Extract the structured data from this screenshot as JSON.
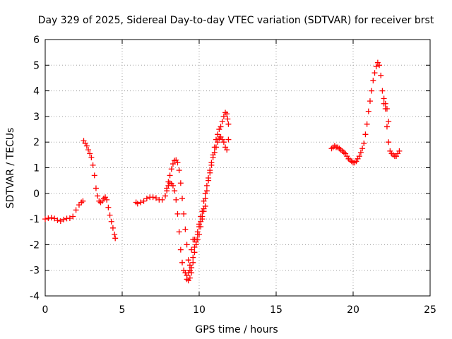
{
  "chart_data": {
    "type": "scatter",
    "title": "Day 329 of 2025, Sidereal Day-to-day VTEC variation (SDTVAR) for receiver brst",
    "xlabel": "GPS time / hours",
    "ylabel": "SDTVAR / TECUs",
    "xlim": [
      0,
      25
    ],
    "ylim": [
      -4,
      6
    ],
    "xticks": [
      0,
      5,
      10,
      15,
      20,
      25
    ],
    "yticks": [
      -4,
      -3,
      -2,
      -1,
      0,
      1,
      2,
      3,
      4,
      5,
      6
    ],
    "grid": true,
    "marker": "+",
    "series_color": "#ff0000",
    "series": [
      {
        "points": [
          [
            0.0,
            -1.0
          ],
          [
            0.2,
            -0.97
          ],
          [
            0.4,
            -0.95
          ],
          [
            0.6,
            -0.98
          ],
          [
            0.8,
            -1.05
          ],
          [
            1.0,
            -1.08
          ],
          [
            1.2,
            -1.02
          ],
          [
            1.4,
            -0.98
          ],
          [
            1.6,
            -0.97
          ],
          [
            1.8,
            -0.9
          ],
          [
            2.0,
            -0.65
          ],
          [
            2.2,
            -0.45
          ],
          [
            2.35,
            -0.35
          ],
          [
            2.45,
            -0.3
          ],
          [
            2.5,
            2.05
          ],
          [
            2.6,
            1.95
          ],
          [
            2.7,
            1.85
          ],
          [
            2.8,
            1.7
          ],
          [
            2.9,
            1.55
          ],
          [
            3.0,
            1.4
          ],
          [
            3.1,
            1.1
          ],
          [
            3.2,
            0.7
          ],
          [
            3.3,
            0.2
          ],
          [
            3.4,
            -0.1
          ],
          [
            3.5,
            -0.3
          ],
          [
            3.6,
            -0.35
          ],
          [
            3.7,
            -0.3
          ],
          [
            3.8,
            -0.2
          ],
          [
            3.9,
            -0.15
          ],
          [
            4.0,
            -0.25
          ],
          [
            4.1,
            -0.55
          ],
          [
            4.2,
            -0.85
          ],
          [
            4.3,
            -1.1
          ],
          [
            4.4,
            -1.35
          ],
          [
            4.5,
            -1.6
          ],
          [
            4.55,
            -1.75
          ]
        ]
      },
      {
        "points": [
          [
            5.9,
            -0.35
          ],
          [
            6.0,
            -0.4
          ],
          [
            6.2,
            -0.35
          ],
          [
            6.4,
            -0.3
          ],
          [
            6.6,
            -0.2
          ],
          [
            6.8,
            -0.15
          ],
          [
            7.0,
            -0.15
          ],
          [
            7.2,
            -0.18
          ],
          [
            7.4,
            -0.25
          ],
          [
            7.6,
            -0.25
          ],
          [
            7.8,
            -0.1
          ],
          [
            7.9,
            0.1
          ],
          [
            8.0,
            0.3
          ],
          [
            8.1,
            0.4
          ],
          [
            8.2,
            0.38
          ],
          [
            8.3,
            0.3
          ],
          [
            8.4,
            0.1
          ],
          [
            8.5,
            -0.25
          ],
          [
            8.6,
            -0.8
          ],
          [
            8.7,
            -1.5
          ],
          [
            8.8,
            -2.2
          ],
          [
            8.9,
            -2.7
          ],
          [
            9.0,
            -3.0
          ],
          [
            9.1,
            -3.1
          ],
          [
            9.2,
            -3.2
          ],
          [
            9.3,
            -3.1
          ],
          [
            9.4,
            -2.8
          ],
          [
            9.5,
            -2.2
          ],
          [
            9.6,
            -1.8
          ],
          [
            9.7,
            -1.8
          ],
          [
            9.8,
            -1.9
          ],
          [
            9.9,
            -1.6
          ],
          [
            10.0,
            -1.3
          ],
          [
            10.1,
            -1.1
          ],
          [
            10.2,
            -0.9
          ],
          [
            10.3,
            -0.7
          ],
          [
            10.4,
            -0.5
          ],
          [
            7.9,
            0.2
          ],
          [
            8.0,
            0.45
          ],
          [
            8.1,
            0.7
          ],
          [
            8.2,
            0.95
          ],
          [
            8.3,
            1.15
          ],
          [
            8.4,
            1.28
          ],
          [
            8.5,
            1.3
          ],
          [
            8.6,
            1.2
          ],
          [
            8.7,
            0.9
          ],
          [
            8.8,
            0.4
          ],
          [
            8.9,
            -0.2
          ],
          [
            9.0,
            -0.8
          ],
          [
            9.1,
            -1.4
          ],
          [
            9.2,
            -2.0
          ],
          [
            9.3,
            -2.6
          ],
          [
            9.4,
            -3.0
          ],
          [
            9.5,
            -2.9
          ],
          [
            9.6,
            -2.5
          ],
          [
            9.7,
            -2.1
          ],
          [
            9.8,
            -1.8
          ],
          [
            9.9,
            -1.5
          ],
          [
            10.0,
            -1.2
          ],
          [
            10.1,
            -0.9
          ],
          [
            10.2,
            -0.7
          ],
          [
            10.3,
            -0.3
          ],
          [
            10.4,
            0.0
          ],
          [
            10.5,
            0.3
          ],
          [
            10.6,
            0.6
          ],
          [
            10.7,
            0.9
          ],
          [
            10.8,
            1.2
          ],
          [
            10.9,
            1.5
          ],
          [
            11.0,
            1.8
          ],
          [
            11.1,
            2.1
          ],
          [
            11.2,
            2.3
          ],
          [
            11.3,
            2.5
          ],
          [
            11.4,
            2.6
          ],
          [
            11.5,
            2.8
          ],
          [
            11.6,
            3.0
          ],
          [
            11.7,
            3.15
          ],
          [
            11.8,
            3.1
          ],
          [
            11.85,
            2.9
          ],
          [
            11.9,
            2.7
          ],
          [
            9.2,
            -3.35
          ],
          [
            9.3,
            -3.4
          ],
          [
            9.4,
            -3.3
          ],
          [
            9.5,
            -3.1
          ],
          [
            9.6,
            -2.7
          ],
          [
            9.7,
            -2.3
          ],
          [
            9.8,
            -2.0
          ],
          [
            9.9,
            -1.8
          ],
          [
            10.0,
            -1.6
          ],
          [
            10.1,
            -1.3
          ],
          [
            10.2,
            -1.0
          ],
          [
            10.3,
            -0.6
          ],
          [
            10.4,
            -0.2
          ],
          [
            10.5,
            0.1
          ],
          [
            10.6,
            0.5
          ],
          [
            10.7,
            0.8
          ],
          [
            10.8,
            1.1
          ],
          [
            10.9,
            1.4
          ],
          [
            11.0,
            1.6
          ],
          [
            11.1,
            1.8
          ],
          [
            11.2,
            2.0
          ],
          [
            11.3,
            2.15
          ],
          [
            11.4,
            2.2
          ],
          [
            11.5,
            2.1
          ],
          [
            11.6,
            2.0
          ],
          [
            11.7,
            1.8
          ],
          [
            11.8,
            1.7
          ],
          [
            11.9,
            2.1
          ]
        ]
      },
      {
        "points": [
          [
            18.6,
            1.75
          ],
          [
            18.7,
            1.8
          ],
          [
            18.8,
            1.85
          ],
          [
            18.9,
            1.8
          ],
          [
            19.0,
            1.8
          ],
          [
            19.1,
            1.75
          ],
          [
            19.2,
            1.7
          ],
          [
            19.3,
            1.65
          ],
          [
            19.4,
            1.6
          ],
          [
            19.5,
            1.55
          ],
          [
            19.6,
            1.45
          ],
          [
            19.7,
            1.35
          ],
          [
            19.8,
            1.3
          ],
          [
            19.9,
            1.25
          ],
          [
            20.0,
            1.2
          ],
          [
            20.1,
            1.2
          ],
          [
            20.2,
            1.25
          ],
          [
            20.3,
            1.35
          ],
          [
            20.4,
            1.45
          ],
          [
            20.5,
            1.6
          ],
          [
            20.6,
            1.75
          ],
          [
            20.7,
            1.95
          ],
          [
            20.8,
            2.3
          ],
          [
            20.9,
            2.7
          ],
          [
            21.0,
            3.2
          ],
          [
            21.1,
            3.6
          ],
          [
            21.2,
            4.0
          ],
          [
            21.3,
            4.4
          ],
          [
            21.4,
            4.7
          ],
          [
            21.5,
            4.95
          ],
          [
            21.6,
            5.1
          ],
          [
            21.7,
            5.0
          ],
          [
            21.8,
            4.6
          ],
          [
            21.9,
            4.0
          ],
          [
            22.0,
            3.5
          ],
          [
            22.1,
            3.3
          ],
          [
            22.2,
            2.6
          ],
          [
            22.3,
            2.0
          ],
          [
            22.4,
            1.65
          ],
          [
            22.5,
            1.55
          ],
          [
            22.6,
            1.5
          ],
          [
            22.7,
            1.45
          ],
          [
            22.8,
            1.45
          ],
          [
            22.9,
            1.55
          ],
          [
            23.0,
            1.65
          ],
          [
            22.0,
            3.7
          ],
          [
            22.1,
            3.5
          ],
          [
            22.2,
            3.3
          ],
          [
            22.3,
            2.8
          ]
        ]
      }
    ]
  }
}
